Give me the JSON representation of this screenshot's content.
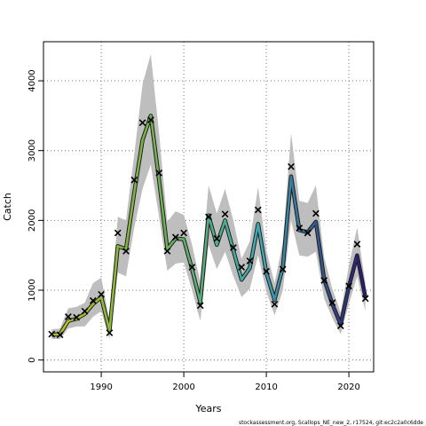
{
  "chart_data": {
    "type": "line",
    "xlabel": "Years",
    "ylabel": "Catch",
    "xlim": [
      1983,
      2023
    ],
    "ylim": [
      -170,
      4560
    ],
    "x_ticks": [
      1990,
      2000,
      2010,
      2020
    ],
    "y_ticks": [
      0,
      1000,
      2000,
      3000,
      4000
    ],
    "grid": true,
    "years": [
      1984,
      1985,
      1986,
      1987,
      1988,
      1989,
      1990,
      1991,
      1992,
      1993,
      1994,
      1995,
      1996,
      1997,
      1998,
      1999,
      2000,
      2001,
      2002,
      2003,
      2004,
      2005,
      2006,
      2007,
      2008,
      2009,
      2010,
      2011,
      2012,
      2013,
      2014,
      2015,
      2016,
      2017,
      2018,
      2019,
      2020,
      2021,
      2022
    ],
    "observed": [
      370,
      360,
      620,
      610,
      700,
      850,
      940,
      390,
      1820,
      1560,
      2580,
      3400,
      3440,
      2680,
      1560,
      1760,
      1820,
      1330,
      780,
      2050,
      1740,
      2090,
      1610,
      1330,
      1420,
      2150,
      1270,
      800,
      1300,
      2770,
      1890,
      1820,
      2100,
      1140,
      820,
      490,
      1060,
      1660,
      880
    ],
    "fitted": [
      360,
      370,
      560,
      590,
      660,
      800,
      900,
      420,
      1630,
      1590,
      2400,
      3150,
      3500,
      2580,
      1590,
      1740,
      1730,
      1300,
      830,
      2070,
      1650,
      2000,
      1570,
      1150,
      1320,
      1950,
      1250,
      860,
      1330,
      2630,
      1860,
      1830,
      1980,
      1160,
      800,
      510,
      1050,
      1500,
      900
    ],
    "interval_lower": [
      300,
      300,
      450,
      480,
      480,
      620,
      700,
      300,
      1250,
      1200,
      1900,
      2450,
      2800,
      2050,
      1280,
      1380,
      1400,
      1000,
      560,
      1650,
      1300,
      1550,
      1200,
      900,
      1020,
      1500,
      980,
      640,
      1000,
      2000,
      1500,
      1480,
      1550,
      880,
      600,
      370,
      800,
      1200,
      700
    ],
    "interval_upper": [
      440,
      450,
      740,
      760,
      820,
      1100,
      1180,
      560,
      2050,
      2000,
      2950,
      3950,
      4380,
      3250,
      1980,
      2130,
      2080,
      1650,
      1120,
      2500,
      2100,
      2450,
      2000,
      1450,
      1700,
      2480,
      1570,
      1100,
      1680,
      3250,
      2280,
      2250,
      2500,
      1470,
      1020,
      680,
      1350,
      1900,
      1100
    ],
    "series_colors": [
      "#B8C025",
      "#6FB04E",
      "#3FA9B5",
      "#2C1E72"
    ],
    "band_color": "#BEBEBE",
    "marker": "x"
  },
  "footer": "stockassessment.org, Scallops_NE_new_2, r17524, git:ec2c2a0c6dde"
}
